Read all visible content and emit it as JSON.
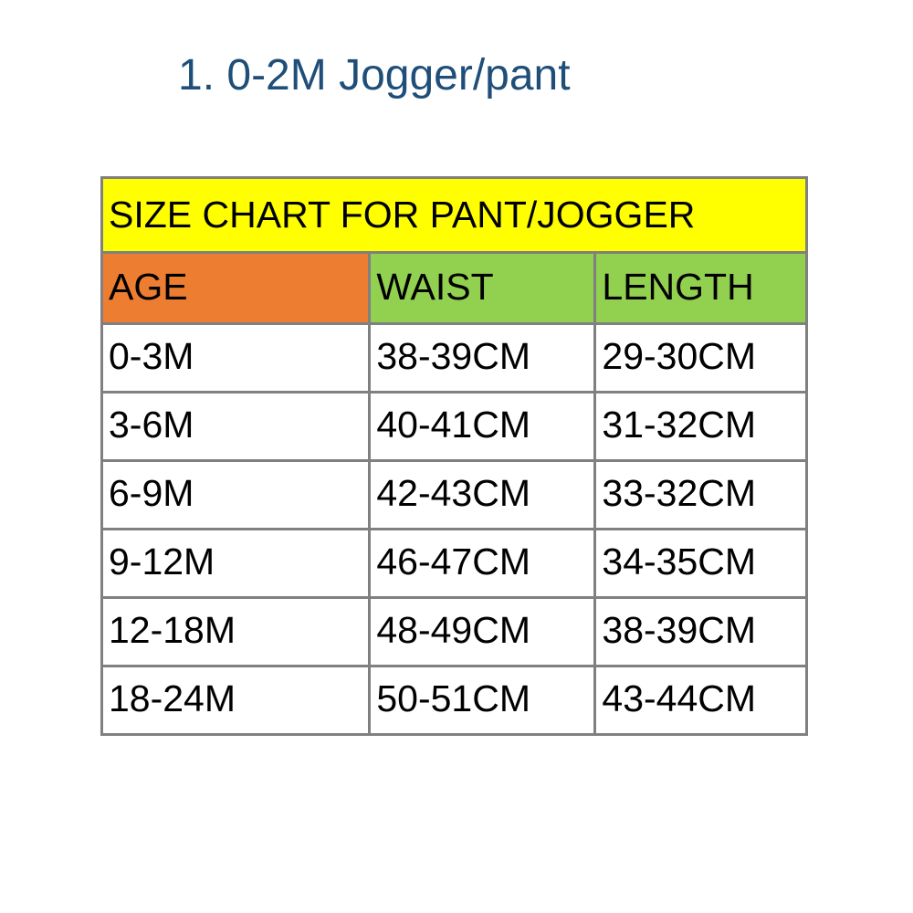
{
  "heading": "1. 0-2M Jogger/pant",
  "table": {
    "type": "table",
    "title": "SIZE CHART FOR PANT/JOGGER",
    "title_bg": "#ffff00",
    "title_fontsize": 41,
    "border_color": "#808080",
    "border_width": 3,
    "background_color": "#ffffff",
    "text_color": "#000000",
    "heading_color": "#1f4e79",
    "heading_fontsize": 48,
    "cell_fontsize": 41,
    "col_widths_pct": [
      38,
      32,
      30
    ],
    "columns": [
      {
        "label": "AGE",
        "bg": "#ed7d31"
      },
      {
        "label": "WAIST",
        "bg": "#92d050"
      },
      {
        "label": "LENGTH",
        "bg": "#92d050"
      }
    ],
    "rows": [
      [
        "0-3M",
        "38-39CM",
        "29-30CM"
      ],
      [
        "3-6M",
        "40-41CM",
        "31-32CM"
      ],
      [
        "6-9M",
        "42-43CM",
        "33-32CM"
      ],
      [
        "9-12M",
        "46-47CM",
        "34-35CM"
      ],
      [
        "12-18M",
        "48-49CM",
        "38-39CM"
      ],
      [
        "18-24M",
        "50-51CM",
        "43-44CM"
      ]
    ]
  }
}
